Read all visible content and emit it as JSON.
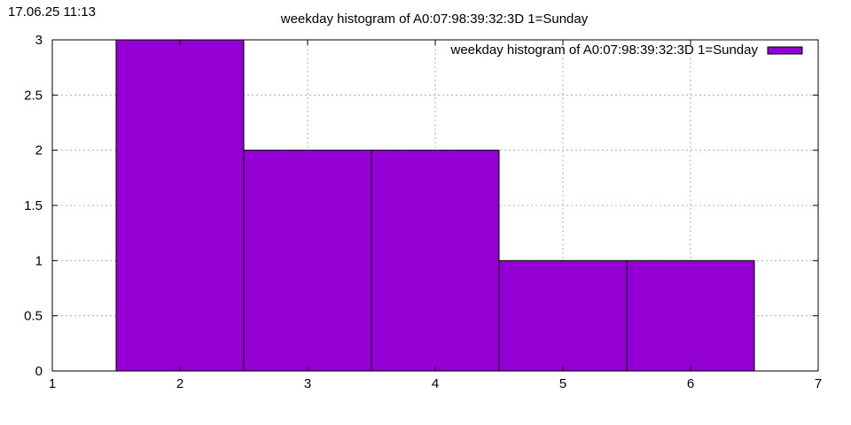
{
  "timestamp": "17.06.25 11:13",
  "chart_data": {
    "type": "bar",
    "title": "weekday histogram of A0:07:98:39:32:3D 1=Sunday",
    "xlabel": "",
    "ylabel": "",
    "x": [
      2,
      3,
      4,
      5,
      6
    ],
    "values": [
      3,
      2,
      2,
      1,
      1
    ],
    "bar_width": 1,
    "xlim": [
      1,
      7
    ],
    "ylim": [
      0,
      3
    ],
    "xticks": [
      1,
      2,
      3,
      4,
      5,
      6,
      7
    ],
    "yticks": [
      0,
      0.5,
      1,
      1.5,
      2,
      2.5,
      3
    ],
    "ytick_labels": [
      "0",
      "0.5",
      "1",
      "1.5",
      "2",
      "2.5",
      "3"
    ],
    "grid": true,
    "legend_position": "top-right",
    "series": [
      {
        "name": "weekday histogram of A0:07:98:39:32:3D 1=Sunday",
        "color": "#9400d3"
      }
    ]
  }
}
